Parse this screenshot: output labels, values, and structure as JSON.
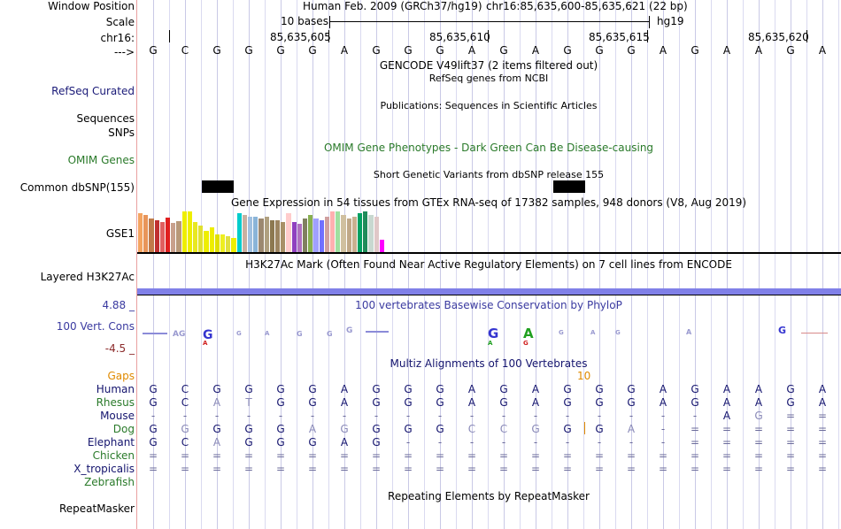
{
  "header": {
    "window_position_label": "Window Position",
    "scale_label": "Scale",
    "chrom_label": "chr16:",
    "arrow_label": "--->",
    "assembly": "Human Feb. 2009 (GRCh37/hg19)",
    "position": "chr16:85,635,600-85,635,621 (22 bp)",
    "scale_text": "10 bases",
    "db": "hg19",
    "ticks": [
      "85,635,605",
      "85,635,610",
      "85,635,615",
      "85,635,620"
    ]
  },
  "sequence": [
    "G",
    "C",
    "G",
    "G",
    "G",
    "G",
    "A",
    "G",
    "G",
    "G",
    "A",
    "G",
    "A",
    "G",
    "G",
    "G",
    "A",
    "G",
    "A",
    "A",
    "G",
    "A"
  ],
  "tracks": {
    "gencode_title": "GENCODE V49lift37 (2 items filtered out)",
    "refseq_label": "RefSeq Curated",
    "refseq_title": "RefSeq genes from NCBI",
    "publications_title": "Publications: Sequences in Scientific Articles",
    "sequences_label": "Sequences",
    "snps_label": "SNPs",
    "omim_title": "OMIM Gene Phenotypes - Dark Green Can Be Disease-causing",
    "omim_label": "OMIM Genes",
    "dbsnp_title": "Short Genetic Variants from dbSNP release 155",
    "dbsnp_label": "Common dbSNP(155)",
    "gtex_title": "Gene Expression in 54 tissues from GTEx RNA-seq of 17382 samples, 948 donors (V8, Aug 2019)",
    "gtex_label": "GSE1",
    "h3k27_title": "H3K27Ac Mark (Often Found Near Active Regulatory Elements) on 7 cell lines from ENCODE",
    "h3k27_label": "Layered H3K27Ac",
    "cons_max": "4.88 _",
    "cons_title": "100 vertebrates Basewise Conservation by PhyloP",
    "cons_label": "100 Vert. Cons",
    "cons_min": "-4.5 _",
    "multiz_title": "Multiz Alignments of 100 Vertebrates",
    "gaps_label": "Gaps",
    "gaps_value": "10",
    "repeat_title": "Repeating Elements by RepeatMasker",
    "repeat_label": "RepeatMasker"
  },
  "gtex_bars": [
    {
      "color": "#f4a460",
      "h": 44
    },
    {
      "color": "#e8955a",
      "h": 42
    },
    {
      "color": "#c07a4a",
      "h": 38
    },
    {
      "color": "#c03030",
      "h": 36
    },
    {
      "color": "#e06060",
      "h": 34
    },
    {
      "color": "#e02020",
      "h": 39
    },
    {
      "color": "#c8a08c",
      "h": 33
    },
    {
      "color": "#b89878",
      "h": 35
    },
    {
      "color": "#eeee00",
      "h": 46
    },
    {
      "color": "#eeee00",
      "h": 46
    },
    {
      "color": "#e8e820",
      "h": 34
    },
    {
      "color": "#e0e030",
      "h": 30
    },
    {
      "color": "#eeee00",
      "h": 24
    },
    {
      "color": "#eeee00",
      "h": 28
    },
    {
      "color": "#e0e000",
      "h": 20
    },
    {
      "color": "#eeee20",
      "h": 20
    },
    {
      "color": "#e0e040",
      "h": 18
    },
    {
      "color": "#eeee00",
      "h": 16
    },
    {
      "color": "#00cccc",
      "h": 44
    },
    {
      "color": "#c8b0a0",
      "h": 42
    },
    {
      "color": "#a0c0e0",
      "h": 40
    },
    {
      "color": "#8ab4d8",
      "h": 40
    },
    {
      "color": "#9c8870",
      "h": 38
    },
    {
      "color": "#b0a080",
      "h": 40
    },
    {
      "color": "#8c7850",
      "h": 36
    },
    {
      "color": "#9c8460",
      "h": 36
    },
    {
      "color": "#a89068",
      "h": 34
    },
    {
      "color": "#ffcccc",
      "h": 44
    },
    {
      "color": "#9040c0",
      "h": 34
    },
    {
      "color": "#b070c0",
      "h": 32
    },
    {
      "color": "#808060",
      "h": 38
    },
    {
      "color": "#88b050",
      "h": 42
    },
    {
      "color": "#a0a0ff",
      "h": 38
    },
    {
      "color": "#7070ff",
      "h": 36
    },
    {
      "color": "#d0a0a0",
      "h": 40
    },
    {
      "color": "#ffb0b0",
      "h": 46
    },
    {
      "color": "#a0e0a0",
      "h": 46
    },
    {
      "color": "#d0c0a0",
      "h": 42
    },
    {
      "color": "#c0a888",
      "h": 38
    },
    {
      "color": "#c8b090",
      "h": 40
    },
    {
      "color": "#00a060",
      "h": 44
    },
    {
      "color": "#1e8c5a",
      "h": 46
    },
    {
      "color": "#c8d8d0",
      "h": 42
    },
    {
      "color": "#e0c8c8",
      "h": 40
    },
    {
      "color": "#ff00ff",
      "h": 14
    }
  ],
  "alignment": [
    {
      "species": "Human",
      "bases": [
        "G",
        "C",
        "G",
        "G",
        "G",
        "G",
        "A",
        "G",
        "G",
        "G",
        "A",
        "G",
        "A",
        "G",
        "G",
        "G",
        "A",
        "G",
        "A",
        "A",
        "G",
        "A"
      ]
    },
    {
      "species": "Rhesus",
      "bases": [
        "G",
        "C",
        "A",
        "T",
        "G",
        "G",
        "A",
        "G",
        "G",
        "G",
        "A",
        "G",
        "A",
        "G",
        "G",
        "G",
        "A",
        "G",
        "A",
        "A",
        "G",
        "A"
      ]
    },
    {
      "species": "Mouse",
      "bases": [
        "-",
        "-",
        "-",
        "-",
        "-",
        "-",
        "-",
        "-",
        "-",
        "-",
        "-",
        "-",
        "-",
        "-",
        "-",
        "-",
        "-",
        "-",
        "A",
        "G",
        "=",
        "="
      ]
    },
    {
      "species": "Dog",
      "bases": [
        "G",
        "G",
        "G",
        "G",
        "G",
        "A",
        "G",
        "G",
        "G",
        "G",
        "C",
        "C",
        "G",
        "G",
        "G",
        "A",
        "-",
        "=",
        "=",
        "=",
        "=",
        "="
      ]
    },
    {
      "species": "Elephant",
      "bases": [
        "G",
        "C",
        "A",
        "G",
        "G",
        "G",
        "A",
        "G",
        "-",
        "-",
        "-",
        "-",
        "-",
        "-",
        "-",
        "-",
        "-",
        "=",
        "=",
        "=",
        "=",
        "="
      ]
    },
    {
      "species": "Chicken",
      "bases": [
        "=",
        "=",
        "=",
        "=",
        "=",
        "=",
        "=",
        "=",
        "=",
        "=",
        "=",
        "=",
        "=",
        "=",
        "=",
        "=",
        "=",
        "=",
        "=",
        "=",
        "=",
        "="
      ]
    },
    {
      "species": "X_tropicalis",
      "bases": [
        "=",
        "=",
        "=",
        "=",
        "=",
        "=",
        "=",
        "=",
        "=",
        "=",
        "=",
        "=",
        "=",
        "=",
        "=",
        "=",
        "=",
        "=",
        "=",
        "=",
        "=",
        "="
      ]
    },
    {
      "species": "Zebrafish",
      "bases": []
    }
  ],
  "colors": {
    "label_blue": "#1a1a78",
    "label_green": "#2a7a2a",
    "gaps_orange": "#e08a00",
    "h3k27_bar": "#8080e8",
    "cons_title_color": "#3a3aa0"
  }
}
